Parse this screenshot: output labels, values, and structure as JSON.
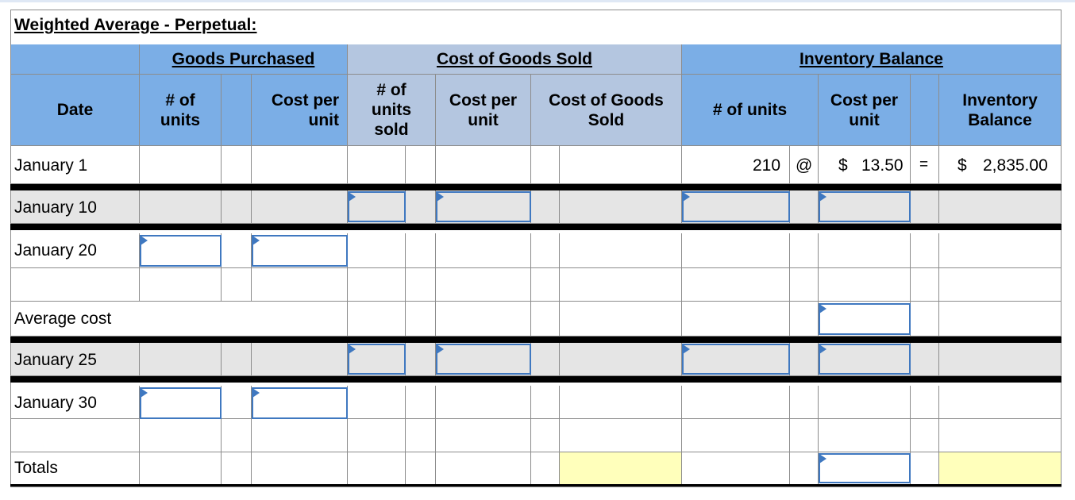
{
  "title": "Weighted Average - Perpetual:",
  "groups": {
    "purchased": "Goods Purchased",
    "cogs": "Cost of Goods Sold",
    "inventory": "Inventory Balance"
  },
  "headers": {
    "date": "Date",
    "purchased_units": "# of units",
    "purchased_cost": "Cost per unit",
    "sold_units": "# of units sold",
    "sold_cost": "Cost per unit",
    "sold_total": "Cost of Goods Sold",
    "inv_units": "# of units",
    "inv_cost": "Cost per unit",
    "inv_balance": "Inventory Balance"
  },
  "rows": {
    "r1": "January 1",
    "r2": "January 10",
    "r3": "January 20",
    "r4": "Average cost",
    "r5": "January 25",
    "r6": "January 30",
    "r7": "Totals"
  },
  "jan1": {
    "units": "210",
    "at": "@",
    "dollar1": "$",
    "cost": "13.50",
    "eq": "=",
    "dollar2": "$",
    "balance": "2,835.00"
  },
  "colors": {
    "header_blue": "#7baee6",
    "header_light_blue": "#b4c6e0",
    "shaded_row": "#e5e5e5",
    "total_highlight": "#ffffbb",
    "input_border": "#3f78c0"
  }
}
